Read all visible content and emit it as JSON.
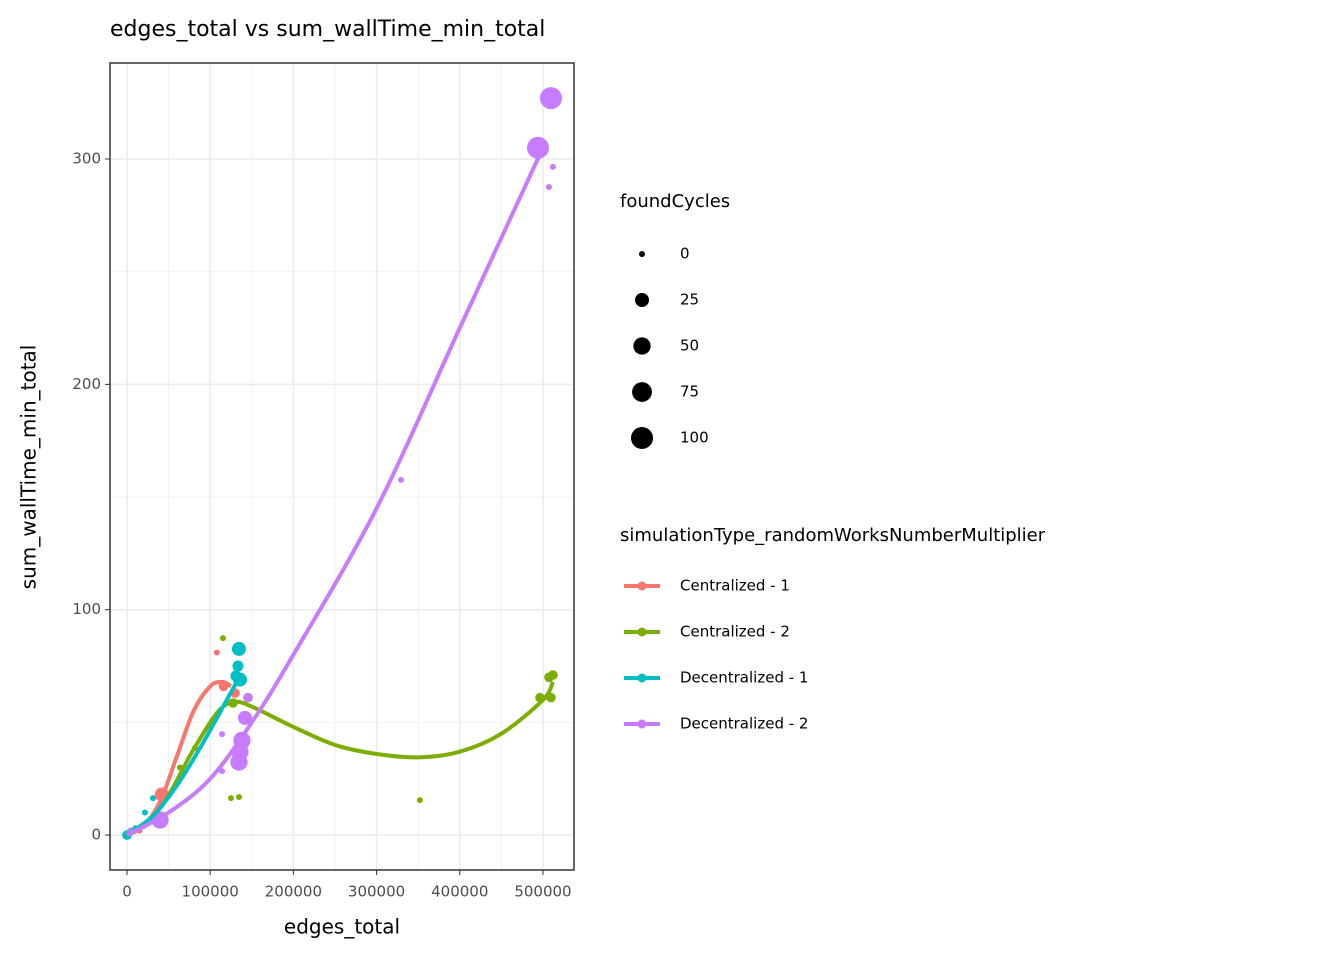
{
  "chart_data": {
    "type": "scatter",
    "title": "edges_total  vs  sum_wallTime_min_total",
    "x_label": "edges_total",
    "y_label": "sum_wallTime_min_total",
    "xlim": [
      -20400,
      537300
    ],
    "ylim": [
      -15.5,
      342.6
    ],
    "xticks": [
      0,
      100000,
      200000,
      300000,
      400000,
      500000
    ],
    "yticks": [
      0,
      100,
      200,
      300
    ],
    "grid": true,
    "size_legend": {
      "title": "foundCycles",
      "values": [
        0,
        25,
        50,
        75,
        100
      ]
    },
    "color_legend_title": "simulationType_randomWorksNumberMultiplier",
    "series": [
      {
        "name": "Centralized - 1",
        "color": "#F8766D",
        "x": [
          108000,
          116000,
          130000,
          42000,
          4000,
          15000
        ],
        "values": [
          81,
          66,
          63,
          18,
          1,
          2
        ],
        "sizes": [
          0,
          5,
          5,
          25,
          0,
          0
        ],
        "smooth_x": [
          0,
          20000,
          40000,
          60000,
          80000,
          100000,
          115000,
          125000
        ],
        "smooth_y": [
          0,
          4,
          15,
          35,
          55,
          66,
          68,
          66
        ]
      },
      {
        "name": "Centralized - 2",
        "color": "#7CAE00",
        "x": [
          115400,
          125000,
          134600,
          352000,
          496400,
          509600,
          507200,
          512000,
          127400,
          145400,
          81700,
          63700,
          10000,
          20000
        ],
        "values": [
          87.4,
          16.4,
          16.9,
          15.5,
          61,
          61,
          70,
          71,
          58.6,
          61,
          38.6,
          30,
          2,
          4
        ],
        "sizes": [
          0,
          0,
          0,
          0,
          5,
          5,
          5,
          5,
          5,
          5,
          0,
          0,
          0,
          0
        ],
        "smooth_x": [
          0,
          40000,
          80000,
          110000,
          130000,
          150000,
          200000,
          250000,
          300000,
          350000,
          400000,
          450000,
          500000,
          512000
        ],
        "smooth_y": [
          0,
          12,
          38,
          55,
          59,
          57,
          48,
          40,
          36,
          34.5,
          37,
          45,
          60,
          68
        ]
      },
      {
        "name": "Decentralized - 1",
        "color": "#00BFC4",
        "x": [
          134600,
          133400,
          131000,
          135800,
          31250,
          21600,
          0,
          5000,
          10000
        ],
        "values": [
          82.6,
          75,
          70.6,
          69,
          16.4,
          10,
          0,
          2,
          3
        ],
        "sizes": [
          25,
          10,
          10,
          25,
          0,
          0,
          5,
          0,
          0
        ],
        "smooth_x": [
          0,
          30000,
          60000,
          90000,
          120000,
          135000
        ],
        "smooth_y": [
          0,
          8,
          22,
          40,
          60,
          70
        ]
      },
      {
        "name": "Decentralized - 2",
        "color": "#C77CFF",
        "x": [
          509600,
          494000,
          512000,
          507200,
          329300,
          114200,
          114200,
          145400,
          141800,
          138200,
          135800,
          134600,
          39700,
          4000
        ],
        "values": [
          327,
          305,
          296.5,
          287.6,
          157.6,
          44.8,
          28.4,
          61,
          52,
          42,
          37,
          32.4,
          6.7,
          2
        ],
        "sizes": [
          100,
          100,
          0,
          0,
          0,
          0,
          0,
          5,
          25,
          50,
          50,
          50,
          50,
          0
        ],
        "smooth_x": [
          0,
          50000,
          100000,
          150000,
          200000,
          300000,
          400000,
          500000
        ],
        "smooth_y": [
          0,
          10,
          25,
          50,
          80,
          145,
          225,
          305
        ]
      }
    ]
  }
}
